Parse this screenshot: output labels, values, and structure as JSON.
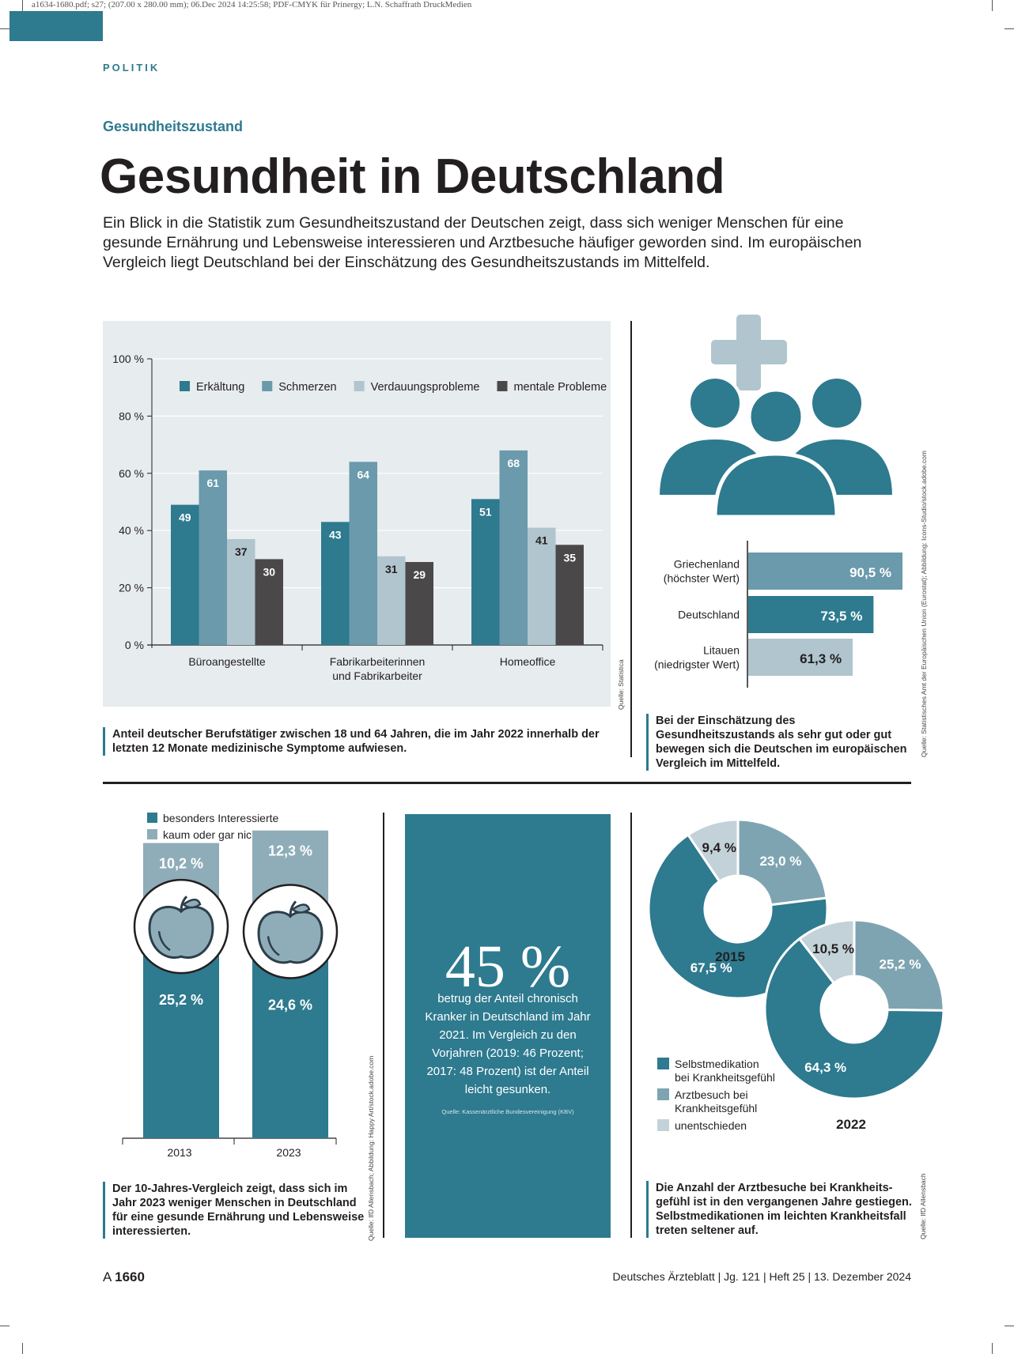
{
  "header": {
    "print_meta": "a1634-1680.pdf; s27; (207.00 x 280.00 mm); 06.Dec 2024 14:25:58; PDF-CMYK für Prinergy; L.N. Schaffrath DruckMedien",
    "rubric": "POLITIK",
    "kicker": "Gesundheitszustand",
    "title": "Gesundheit in Deutschland",
    "lead": "Ein Blick in die Statistik zum Gesundheitszustand der Deutschen zeigt, dass sich weniger Menschen für eine gesunde Ernährung und Lebensweise interessieren und Arztbesuche häufiger geworden sind. Im europäischen Vergleich liegt Deutschland bei der Einschätzung des Gesundheitszustands im Mittelfeld."
  },
  "colors": {
    "teal": "#2e7a8f",
    "mid": "#6a9aab",
    "light": "#b0c5cd",
    "dark": "#4a4849",
    "panel": "#e7ecee"
  },
  "chart_data": [
    {
      "type": "bar",
      "categories": [
        "Büroangestellte",
        "Fabrikarbeiterinnen und Fabrikarbeiter",
        "Homeoffice"
      ],
      "category_lines": [
        [
          "Büroangestellte"
        ],
        [
          "Fabrikarbeiterinnen",
          "und Fabrikarbeiter"
        ],
        [
          "Homeoffice"
        ]
      ],
      "series": [
        {
          "name": "Erkältung",
          "values": [
            49,
            43,
            51
          ],
          "color": "#2e7a8f"
        },
        {
          "name": "Schmerzen",
          "values": [
            61,
            64,
            68
          ],
          "color": "#6a9aab"
        },
        {
          "name": "Verdauungsprobleme",
          "values": [
            37,
            31,
            41
          ],
          "color": "#b0c5cd"
        },
        {
          "name": "mentale Probleme",
          "values": [
            30,
            29,
            35
          ],
          "color": "#4a4849"
        }
      ],
      "ylim": [
        0,
        100
      ],
      "yticks": [
        "0 %",
        "20 %",
        "40 %",
        "60 %",
        "80 %",
        "100 %"
      ],
      "legend_position": "top",
      "grid": true,
      "source": "Quelle: Statistica",
      "caption": "Anteil deutscher Berufstätiger zwischen 18 und 64 Jahren, die im Jahr 2022 innerhalb der letzten 12 Monate medizinische Symptome aufwiesen."
    },
    {
      "type": "bar",
      "orientation": "horizontal",
      "categories": [
        "Griechenland (höchster Wert)",
        "Deutschland",
        "Litauen (niedrigster Wert)"
      ],
      "category_lines": [
        [
          "Griechenland",
          "(höchster Wert)"
        ],
        [
          "Deutschland"
        ],
        [
          "Litauen",
          "(niedrigster Wert)"
        ]
      ],
      "values": [
        90.5,
        73.5,
        61.3
      ],
      "value_labels": [
        "90,5 %",
        "73,5 %",
        "61,3 %"
      ],
      "colors": [
        "#6a9aab",
        "#2e7a8f",
        "#b0c5cd"
      ],
      "source": "Quelle: Statistisches Amt der Europäischen Union (Eurostat); Abbildung: Icons-Studio/stock.adobe.com",
      "caption": "Bei der Einschätzung des Gesundheitszustands als sehr gut oder gut bewegen sich die Deut­schen im europäischen Vergleich im Mittelfeld."
    },
    {
      "type": "bar",
      "stacked": true,
      "categories": [
        "2013",
        "2023"
      ],
      "series": [
        {
          "name": "besonders Interessierte",
          "values": [
            25.2,
            24.6
          ],
          "labels": [
            "25,2 %",
            "24,6 %"
          ],
          "color": "#2e7a8f"
        },
        {
          "name": "kaum oder gar nicht Interessierte",
          "values": [
            10.2,
            12.3
          ],
          "labels": [
            "10,2 %",
            "12,3 %"
          ],
          "color": "#8fadb8"
        }
      ],
      "source": "Quelle: IfD Allensbach; Abbildung: Happy Art/stock.adobe.com",
      "caption": "Der 10-Jahres-Vergleich zeigt, dass sich im Jahr 2023 weniger Menschen in Deutschland für eine gesunde Ernährung und Lebensweise interessierten."
    },
    {
      "type": "pie",
      "donut": true,
      "charts": [
        {
          "label": "2015",
          "values": [
            67.5,
            23.0,
            9.4
          ],
          "labels": [
            "67,5 %",
            "23,0 %",
            "9,4 %"
          ]
        },
        {
          "label": "2022",
          "values": [
            64.3,
            25.2,
            10.5
          ],
          "labels": [
            "64,3 %",
            "25,2 %",
            "10,5 %"
          ]
        }
      ],
      "series_names": [
        "Selbstmedikation bei Krankheitsgefühl",
        "Arztbesuch bei Krankheitsgefühl",
        "unentschieden"
      ],
      "legend_lines": [
        [
          "Selbstmedikation",
          "bei Krankheitsgefühl"
        ],
        [
          "Arztbesuch bei",
          "Krankheitsgefühl"
        ],
        [
          "unentschieden"
        ]
      ],
      "colors": [
        "#2e7a8f",
        "#7fa4b1",
        "#c3d2d8"
      ],
      "source": "Quelle: IfD Allensbach",
      "caption": "Die Anzahl der Arztbesuche bei Krankheits­gefühl ist in den vergangenen Jahre gestiegen. Selbstmedikationen im leichten Krankheitsfall treten seltener auf."
    }
  ],
  "highlight": {
    "value": "45 %",
    "text": "betrug der Anteil chronisch Kran­ker in Deutschland im Jahr 2021. Im Vergleich zu den Vorjahren (2019: 46 Prozent; 2017: 48 Pro­zent) ist der Anteil leicht gesun­ken.",
    "source": "Quelle: Kassenärztliche Bundesvereinigung (KBV)"
  },
  "footer": {
    "page_prefix": "A",
    "page_number": "1660",
    "publication": "Deutsches Ärzteblatt | Jg. 121 | Heft 25 | 13. Dezember 2024"
  }
}
